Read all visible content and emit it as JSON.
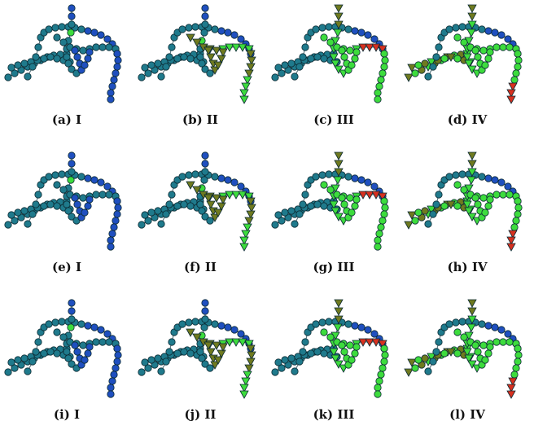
{
  "colors": {
    "blue": "#1f4fbf",
    "teal": "#1f7a8c",
    "green": "#3ddc3d",
    "olive": "#6f7a1f",
    "red": "#d7301f",
    "stroke": "#0b2a33"
  },
  "panels": [
    {
      "caption": "(a) I",
      "highlight": "none"
    },
    {
      "caption": "(b) II",
      "highlight": "right"
    },
    {
      "caption": "(c) III",
      "highlight": "center"
    },
    {
      "caption": "(d) IV",
      "highlight": "left"
    },
    {
      "caption": "(e) I",
      "highlight": "none"
    },
    {
      "caption": "(f) II",
      "highlight": "right"
    },
    {
      "caption": "(g) III",
      "highlight": "center"
    },
    {
      "caption": "(h) IV",
      "highlight": "left"
    },
    {
      "caption": "(i) I",
      "highlight": "none"
    },
    {
      "caption": "(j) II",
      "highlight": "right"
    },
    {
      "caption": "(k) III",
      "highlight": "center"
    },
    {
      "caption": "(l) IV",
      "highlight": "left"
    }
  ]
}
